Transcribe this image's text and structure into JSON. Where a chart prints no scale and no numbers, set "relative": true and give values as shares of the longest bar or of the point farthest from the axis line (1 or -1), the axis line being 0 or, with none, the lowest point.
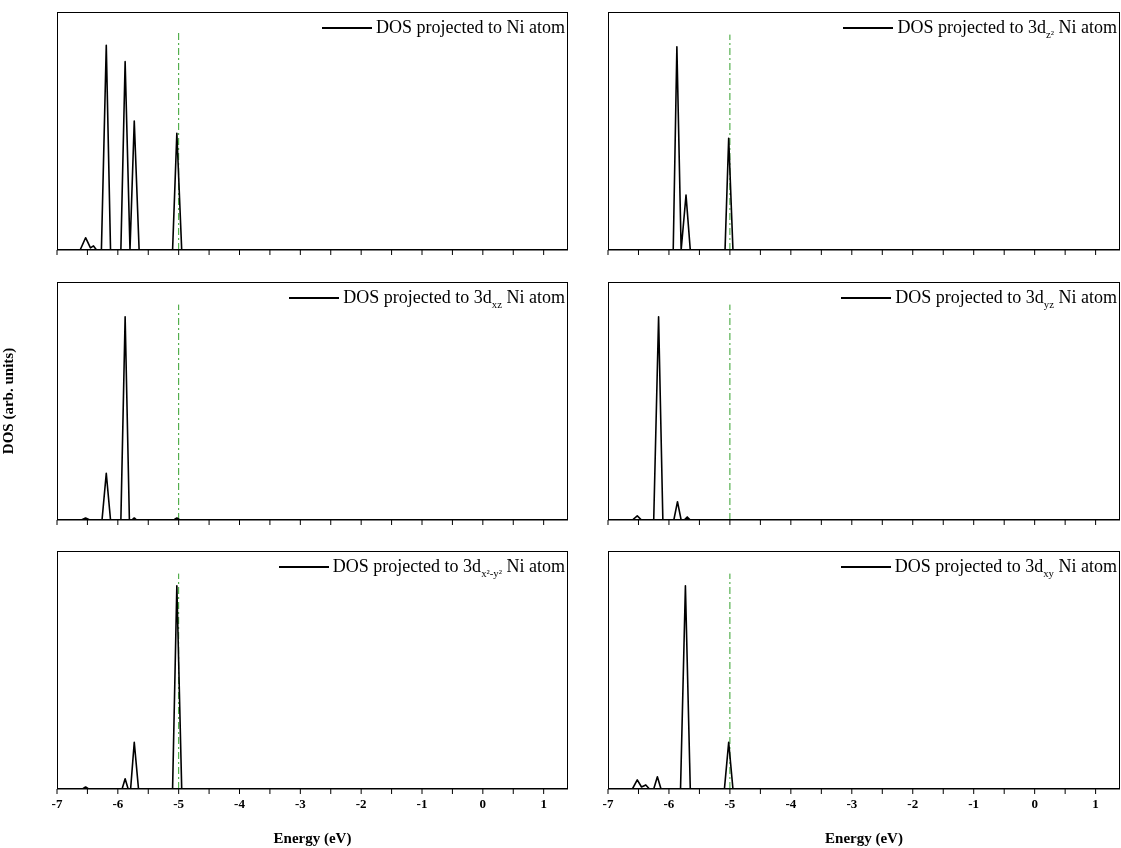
{
  "chart_data": [
    {
      "type": "line",
      "relative": true,
      "legend": "top right",
      "tick_labels": false,
      "xlim": [
        -7,
        1.4
      ],
      "xticks": [
        -7,
        {
          "value": -6.5,
          "label": null
        },
        -6,
        {
          "value": -5.5,
          "label": null
        },
        -5,
        {
          "value": -4.5,
          "label": null
        },
        -4,
        {
          "value": -3.5,
          "label": null
        },
        -3,
        {
          "value": -2.5,
          "label": null
        },
        -2,
        {
          "value": -1.5,
          "label": null
        },
        -1,
        {
          "value": -0.5,
          "label": null
        },
        0,
        {
          "value": 0.5,
          "label": null
        },
        1
      ],
      "ref_lines": [
        {
          "axis": "x",
          "value": -5,
          "color": "#33a02c",
          "line_style": "dashed"
        }
      ],
      "series": [
        {
          "name": "DOS projected to Ni atom",
          "color": "#000000",
          "x": [
            -7,
            -6.62,
            -6.53,
            -6.45,
            -6.4,
            -6.35,
            -6.27,
            -6.19,
            -6.12,
            -5.95,
            -5.88,
            -5.8,
            -5.73,
            -5.65,
            -5.1,
            -5.03,
            -4.95,
            1.4
          ],
          "values": [
            0,
            0,
            0.06,
            0.01,
            0.02,
            0,
            0,
            1,
            0,
            0,
            0.92,
            0,
            0.63,
            0,
            0,
            0.57,
            0,
            0
          ]
        }
      ]
    },
    {
      "type": "line",
      "relative": true,
      "legend": "top right",
      "tick_labels": false,
      "xlim": [
        -7,
        1.4
      ],
      "xticks": [
        -7,
        {
          "value": -6.5,
          "label": null
        },
        -6,
        {
          "value": -5.5,
          "label": null
        },
        -5,
        {
          "value": -4.5,
          "label": null
        },
        -4,
        {
          "value": -3.5,
          "label": null
        },
        -3,
        {
          "value": -2.5,
          "label": null
        },
        -2,
        {
          "value": -1.5,
          "label": null
        },
        -1,
        {
          "value": -0.5,
          "label": null
        },
        0,
        {
          "value": 0.5,
          "label": null
        },
        1
      ],
      "ref_lines": [
        {
          "axis": "x",
          "value": -5,
          "color": "#33a02c",
          "line_style": "dashed"
        }
      ],
      "series": [
        {
          "name": "DOS projected to 3d$_{z²}$ Ni atom",
          "color": "#000000",
          "x": [
            -7,
            -5.93,
            -5.87,
            -5.8,
            -5.72,
            -5.65,
            -5.08,
            -5.02,
            -4.95,
            1.4
          ],
          "values": [
            0,
            0,
            1,
            0,
            0.27,
            0,
            0,
            0.55,
            0,
            0
          ]
        }
      ]
    },
    {
      "type": "line",
      "relative": true,
      "legend": "top right",
      "tick_labels": false,
      "ylabel": "DOS (arb. units)",
      "xlim": [
        -7,
        1.4
      ],
      "xticks": [
        -7,
        {
          "value": -6.5,
          "label": null
        },
        -6,
        {
          "value": -5.5,
          "label": null
        },
        -5,
        {
          "value": -4.5,
          "label": null
        },
        -4,
        {
          "value": -3.5,
          "label": null
        },
        -3,
        {
          "value": -2.5,
          "label": null
        },
        -2,
        {
          "value": -1.5,
          "label": null
        },
        -1,
        {
          "value": -0.5,
          "label": null
        },
        0,
        {
          "value": 0.5,
          "label": null
        },
        1
      ],
      "ref_lines": [
        {
          "axis": "x",
          "value": -5,
          "color": "#33a02c",
          "line_style": "dashed"
        }
      ],
      "series": [
        {
          "name": "DOS projected to 3d$_{xz}$ Ni atom",
          "color": "#000000",
          "x": [
            -7,
            -6.6,
            -6.53,
            -6.46,
            -6.26,
            -6.19,
            -6.12,
            -5.95,
            -5.88,
            -5.81,
            -5.77,
            -5.73,
            -5.69,
            -5.08,
            -5.03,
            -4.98,
            1.4
          ],
          "values": [
            0,
            0,
            0.01,
            0,
            0,
            0.23,
            0,
            0,
            1,
            0,
            0,
            0.01,
            0,
            0,
            0.01,
            0,
            0
          ]
        }
      ]
    },
    {
      "type": "line",
      "relative": true,
      "legend": "top right",
      "tick_labels": false,
      "xlim": [
        -7,
        1.4
      ],
      "xticks": [
        -7,
        {
          "value": -6.5,
          "label": null
        },
        -6,
        {
          "value": -5.5,
          "label": null
        },
        -5,
        {
          "value": -4.5,
          "label": null
        },
        -4,
        {
          "value": -3.5,
          "label": null
        },
        -3,
        {
          "value": -2.5,
          "label": null
        },
        -2,
        {
          "value": -1.5,
          "label": null
        },
        -1,
        {
          "value": -0.5,
          "label": null
        },
        0,
        {
          "value": 0.5,
          "label": null
        },
        1
      ],
      "ref_lines": [
        {
          "axis": "x",
          "value": -5,
          "color": "#33a02c",
          "line_style": "dashed"
        }
      ],
      "series": [
        {
          "name": "DOS projected to 3d$_{yz}$ Ni atom",
          "color": "#000000",
          "x": [
            -7,
            -6.6,
            -6.52,
            -6.45,
            -6.25,
            -6.17,
            -6.1,
            -5.92,
            -5.86,
            -5.8,
            -5.75,
            -5.7,
            -5.65,
            1.4
          ],
          "values": [
            0,
            0,
            0.02,
            0,
            0,
            1,
            0,
            0,
            0.09,
            0,
            0,
            0.015,
            0,
            0
          ]
        }
      ]
    },
    {
      "type": "line",
      "relative": true,
      "legend": "top right",
      "tick_labels": "x",
      "xlabel": "Energy (eV)",
      "xlim": [
        -7,
        1.4
      ],
      "xticks": [
        -7,
        {
          "value": -6.5,
          "label": null
        },
        -6,
        {
          "value": -5.5,
          "label": null
        },
        -5,
        {
          "value": -4.5,
          "label": null
        },
        -4,
        {
          "value": -3.5,
          "label": null
        },
        -3,
        {
          "value": -2.5,
          "label": null
        },
        -2,
        {
          "value": -1.5,
          "label": null
        },
        -1,
        {
          "value": -0.5,
          "label": null
        },
        0,
        {
          "value": 0.5,
          "label": null
        },
        1
      ],
      "ref_lines": [
        {
          "axis": "x",
          "value": -5,
          "color": "#33a02c",
          "line_style": "dashed"
        }
      ],
      "series": [
        {
          "name": "DOS projected to 3d$_{x²-y²}$ Ni atom",
          "color": "#000000",
          "x": [
            -7,
            -6.58,
            -6.53,
            -6.48,
            -5.93,
            -5.88,
            -5.83,
            -5.79,
            -5.73,
            -5.66,
            -5.1,
            -5.03,
            -4.95,
            1.4
          ],
          "values": [
            0,
            0,
            0.01,
            0,
            0,
            0.05,
            0,
            0,
            0.23,
            0,
            0,
            1,
            0,
            0
          ]
        }
      ]
    },
    {
      "type": "line",
      "relative": true,
      "legend": "top right",
      "tick_labels": "x",
      "xlabel": "Energy (eV)",
      "xlim": [
        -7,
        1.4
      ],
      "xticks": [
        -7,
        {
          "value": -6.5,
          "label": null
        },
        -6,
        {
          "value": -5.5,
          "label": null
        },
        -5,
        {
          "value": -4.5,
          "label": null
        },
        -4,
        {
          "value": -3.5,
          "label": null
        },
        -3,
        {
          "value": -2.5,
          "label": null
        },
        -2,
        {
          "value": -1.5,
          "label": null
        },
        -1,
        {
          "value": -0.5,
          "label": null
        },
        0,
        {
          "value": 0.5,
          "label": null
        },
        1
      ],
      "ref_lines": [
        {
          "axis": "x",
          "value": -5,
          "color": "#33a02c",
          "line_style": "dashed"
        }
      ],
      "series": [
        {
          "name": "DOS projected to 3d$_{xy}$ Ni atom",
          "color": "#000000",
          "x": [
            -7,
            -6.6,
            -6.52,
            -6.45,
            -6.38,
            -6.32,
            -6.25,
            -6.19,
            -6.13,
            -5.81,
            -5.73,
            -5.65,
            -5.09,
            -5.02,
            -4.95,
            1.4
          ],
          "values": [
            0,
            0,
            0.045,
            0.01,
            0.02,
            0,
            0,
            0.06,
            0,
            0,
            1,
            0,
            0,
            0.23,
            0,
            0
          ]
        }
      ]
    }
  ]
}
